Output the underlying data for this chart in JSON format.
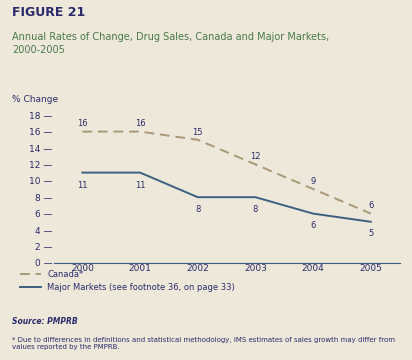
{
  "title_bold": "FIGURE 21",
  "title_sub": "Annual Rates of Change, Drug Sales, Canada and Major Markets,\n2000-2005",
  "ylabel": "% Change",
  "years": [
    2000,
    2001,
    2002,
    2003,
    2004,
    2005
  ],
  "canada": [
    16,
    16,
    15,
    12,
    9,
    6
  ],
  "major_markets": [
    11,
    11,
    8,
    8,
    6,
    5
  ],
  "canada_labels": [
    "16",
    "16",
    "15",
    "12",
    "9",
    "6"
  ],
  "major_labels": [
    "11",
    "11",
    "8",
    "8",
    "6",
    "5"
  ],
  "canada_color": "#a89878",
  "major_color": "#3d6080",
  "bg_color": "#ede8da",
  "title_color": "#2b2b6b",
  "sub_color": "#4a7a4a",
  "ytick_color": "#2b2b6b",
  "ylim": [
    0,
    18
  ],
  "yticks": [
    0,
    2,
    4,
    6,
    8,
    10,
    12,
    14,
    16,
    18
  ],
  "source_text": "Source: PMPRB",
  "footnote": "* Due to differences in definitions and statistical methodology, IMS estimates of sales growth may differ from values reported by the PMPRB.",
  "legend_canada": "Canada*",
  "legend_major": "Major Markets (see footnote 36, on page 33)"
}
